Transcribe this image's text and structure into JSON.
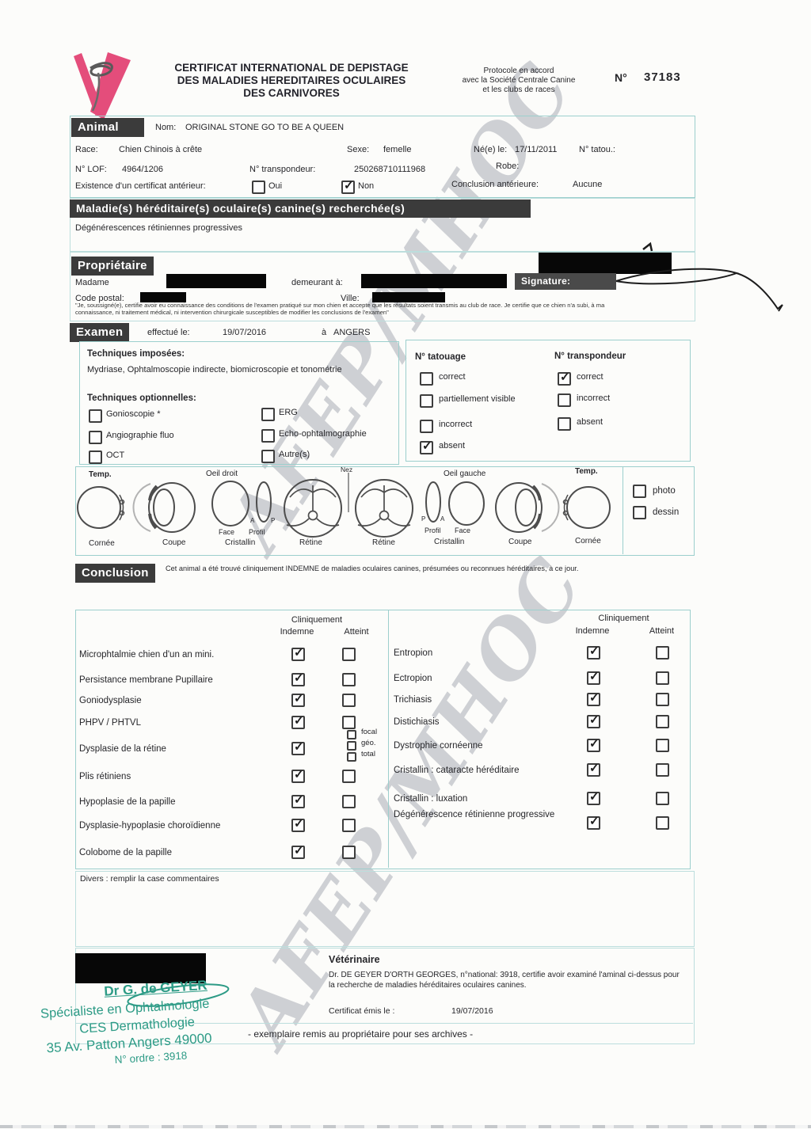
{
  "colors": {
    "accent_teal": "#9ccfcd",
    "header_bar": "#3b3b3b",
    "stamp_green": "#2d9b86",
    "logo_pink": "#e44d7b"
  },
  "watermark": {
    "text": "AFEP/MHOC"
  },
  "header": {
    "title_lines": [
      "CERTIFICAT INTERNATIONAL DE DEPISTAGE",
      "DES MALADIES HEREDITAIRES OCULAIRES",
      "DES CARNIVORES"
    ],
    "protocol_lines": [
      "Protocole en accord",
      "avec la Société Centrale Canine",
      "et les clubs de races"
    ],
    "number_label": "N°",
    "number": "37183"
  },
  "animal": {
    "header": "Animal",
    "nom_label": "Nom:",
    "nom": "ORIGINAL STONE GO TO BE A QUEEN",
    "race_label": "Race:",
    "race": "Chien Chinois à crête",
    "sexe_label": "Sexe:",
    "sexe": "femelle",
    "ne_label": "Né(e) le:",
    "ne": "17/11/2011",
    "tatou_label": "N° tatou.:",
    "lof_label": "N° LOF:",
    "lof": "4964/1206",
    "transpondeur_label": "N° transpondeur:",
    "transpondeur": "250268710111968",
    "robe_label": "Robe:",
    "certificat_label": "Existence d'un certificat antérieur:",
    "certificat_options": [
      {
        "label": "Oui",
        "checked": false
      },
      {
        "label": "Non",
        "checked": true
      }
    ],
    "conclusion_ant_label": "Conclusion antérieure:",
    "conclusion_ant": "Aucune"
  },
  "maladies": {
    "header": "Maladie(s) héréditaire(s) oculaire(s) canine(s) recherchée(s)",
    "value": "Dégénérescences rétiniennes progressives"
  },
  "proprietaire": {
    "header": "Propriétaire",
    "civilite": "Madame",
    "demeurant_label": "demeurant à:",
    "signature_label": "Signature:",
    "code_postal_label": "Code postal:",
    "ville_label": "Ville:",
    "legal": "\"Je, soussigné(e), certifie avoir eu connaissance des conditions de l'examen pratiqué sur mon chien et accepte que les résultats soient transmis au club de race. Je certifie que ce chien n'a subi, à ma connaissance, ni traitement médical, ni intervention chirurgicale susceptibles de modifier les conclusions de l'examen\""
  },
  "examen": {
    "header": "Examen",
    "effectue_label": "effectué le:",
    "date": "19/07/2016",
    "a_label": "à",
    "lieu": "ANGERS",
    "imposees_label": "Techniques imposées:",
    "imposees_text": "Mydriase, Ophtalmoscopie indirecte, biomicroscopie et tonométrie",
    "optionnelles_label": "Techniques optionnelles:",
    "optionnelles_col1": [
      {
        "label": "Gonioscopie *",
        "checked": false
      },
      {
        "label": "Angiographie fluo",
        "checked": false
      },
      {
        "label": "OCT",
        "checked": false
      }
    ],
    "optionnelles_col2": [
      {
        "label": "ERG",
        "checked": false
      },
      {
        "label": "Echo-ophtalmographie",
        "checked": false
      },
      {
        "label": "Autre(s)",
        "checked": false
      }
    ],
    "tatouage_label": "N° tatouage",
    "tatouage_options": [
      {
        "label": "correct",
        "checked": false
      },
      {
        "label": "partiellement visible",
        "checked": false
      },
      {
        "label": "incorrect",
        "checked": false
      },
      {
        "label": "absent",
        "checked": true
      }
    ],
    "transpondeur_label": "N° transpondeur",
    "transpondeur_options": [
      {
        "label": "correct",
        "checked": true
      },
      {
        "label": "incorrect",
        "checked": false
      },
      {
        "label": "absent",
        "checked": false
      }
    ]
  },
  "diagram": {
    "top_labels": [
      "Temp.",
      "Oeil droit",
      "Nez",
      "Oeil gauche",
      "Temp."
    ],
    "bottom_labels": [
      "Cornée",
      "Coupe",
      "Cristallin",
      "Rétine",
      "Rétine",
      "Cristallin",
      "Coupe",
      "Cornée"
    ],
    "sub_labels": [
      "Face",
      "Profil",
      "Profil",
      "Face"
    ],
    "ap_labels": [
      "A",
      "P",
      "P",
      "A"
    ],
    "photo_label": "photo",
    "dessin_label": "dessin"
  },
  "conclusion": {
    "header": "Conclusion",
    "statement": "Cet animal a été trouvé cliniquement INDEMNE de maladies oculaires canines, présumées ou reconnues héréditaires, à ce jour.",
    "col_header": "Cliniquement",
    "col_indemne": "Indemne",
    "col_atteint": "Atteint",
    "left_rows": [
      {
        "label": "Microphtalmie chien d'un an mini.",
        "indemne": true,
        "atteint": false
      },
      {
        "label": "Persistance membrane Pupillaire",
        "indemne": true,
        "atteint": false
      },
      {
        "label": "Goniodysplasie",
        "indemne": true,
        "atteint": false
      },
      {
        "label": "PHPV / PHTVL",
        "indemne": true,
        "atteint": false
      },
      {
        "label": "Dysplasie de la rétine",
        "indemne": true,
        "atteint": false,
        "sub": [
          "focal",
          "géo.",
          "total"
        ]
      },
      {
        "label": "Plis rétiniens",
        "indemne": true,
        "atteint": false
      },
      {
        "label": "Hypoplasie de la papille",
        "indemne": true,
        "atteint": false
      },
      {
        "label": "Dysplasie-hypoplasie choroïdienne",
        "indemne": true,
        "atteint": false
      },
      {
        "label": "Colobome de la papille",
        "indemne": true,
        "atteint": false
      }
    ],
    "right_rows": [
      {
        "label": "Entropion",
        "indemne": true,
        "atteint": false
      },
      {
        "label": "Ectropion",
        "indemne": true,
        "atteint": false
      },
      {
        "label": "Trichiasis",
        "indemne": true,
        "atteint": false
      },
      {
        "label": "Distichiasis",
        "indemne": true,
        "atteint": false
      },
      {
        "label": "Dystrophie cornéenne",
        "indemne": true,
        "atteint": false
      },
      {
        "label": "Cristallin : cataracte héréditaire",
        "indemne": true,
        "atteint": false
      },
      {
        "label": "Cristallin : luxation",
        "indemne": true,
        "atteint": false
      },
      {
        "label": "Dégénérescence rétinienne progressive",
        "indemne": true,
        "atteint": false
      }
    ]
  },
  "divers": {
    "label": "Divers : remplir la case commentaires"
  },
  "veterinaire": {
    "header": "Vétérinaire",
    "statement": "Dr. DE GEYER D'ORTH GEORGES, n°national: 3918, certifie avoir examiné l'aminal ci-dessus pour la recherche de maladies héréditaires oculaires canines.",
    "emis_label": "Certificat émis le :",
    "emis_date": "19/07/2016",
    "footer": "- exemplaire remis au propriétaire pour ses archives -"
  },
  "stamp": {
    "lines": [
      "Dr G. de GEYER",
      "Spécialiste en Ophtalmologie",
      "CES Dermathologie",
      "35 Av. Patton Angers 49000",
      "N° ordre : 3918"
    ]
  }
}
